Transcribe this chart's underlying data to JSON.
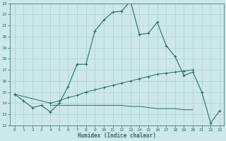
{
  "xlabel": "Humidex (Indice chaleur)",
  "x_values": [
    0,
    1,
    2,
    3,
    4,
    5,
    6,
    7,
    8,
    9,
    10,
    11,
    12,
    13,
    14,
    15,
    16,
    17,
    18,
    19,
    20,
    21,
    22,
    23
  ],
  "line1_y": [
    14.8,
    14.2,
    13.6,
    13.8,
    13.2,
    14.0,
    15.5,
    17.5,
    17.5,
    20.5,
    21.5,
    22.2,
    22.3,
    23.2,
    20.2,
    20.3,
    21.3,
    19.2,
    18.2,
    16.5,
    16.8,
    15.0,
    12.2,
    13.3
  ],
  "line2_y": [
    14.8,
    null,
    null,
    null,
    14.0,
    14.2,
    14.5,
    14.7,
    15.0,
    15.2,
    15.4,
    15.6,
    15.8,
    16.0,
    16.2,
    16.4,
    16.6,
    16.7,
    16.8,
    16.9,
    17.0,
    null,
    null,
    null
  ],
  "line3_y": [
    null,
    null,
    null,
    null,
    13.8,
    13.8,
    13.8,
    13.8,
    13.8,
    13.8,
    13.8,
    13.8,
    13.8,
    13.7,
    13.7,
    13.6,
    13.5,
    13.5,
    13.5,
    13.4,
    13.4,
    null,
    null,
    null
  ],
  "line_color": "#2e6b5e",
  "bg_color": "#cce8e8",
  "grid_color": "#b0d0d0",
  "ylim": [
    12,
    23
  ],
  "xlim": [
    -0.5,
    23.5
  ],
  "yticks": [
    12,
    13,
    14,
    15,
    16,
    17,
    18,
    19,
    20,
    21,
    22,
    23
  ],
  "xticks": [
    0,
    1,
    2,
    3,
    4,
    5,
    6,
    7,
    8,
    9,
    10,
    11,
    12,
    13,
    14,
    15,
    16,
    17,
    18,
    19,
    20,
    21,
    22,
    23
  ]
}
